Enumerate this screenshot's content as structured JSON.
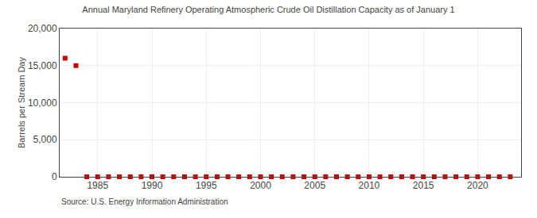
{
  "chart_data": {
    "type": "scatter",
    "title": "Annual Maryland Refinery Operating Atmospheric Crude Oil Distillation Capacity as of January 1",
    "ylabel": "Barrels per Stream Day",
    "annotations": [
      "Source: U.S. Energy Information Administration"
    ],
    "x": [
      1982,
      1983,
      1984,
      1985,
      1986,
      1987,
      1988,
      1989,
      1990,
      1991,
      1992,
      1993,
      1994,
      1995,
      1996,
      1997,
      1998,
      1999,
      2000,
      2001,
      2002,
      2003,
      2004,
      2005,
      2006,
      2007,
      2008,
      2009,
      2010,
      2011,
      2012,
      2013,
      2014,
      2015,
      2016,
      2017,
      2018,
      2019,
      2020,
      2021,
      2022,
      2023
    ],
    "values": [
      16000,
      15000,
      0,
      0,
      0,
      0,
      0,
      0,
      0,
      0,
      0,
      0,
      0,
      0,
      0,
      0,
      0,
      0,
      0,
      0,
      0,
      0,
      0,
      0,
      0,
      0,
      0,
      0,
      0,
      0,
      0,
      0,
      0,
      0,
      0,
      0,
      0,
      0,
      0,
      0,
      0,
      0
    ],
    "color": "#cc0000",
    "marker": "square",
    "xlim": [
      1981.5,
      2024
    ],
    "xticks": [
      1985,
      1990,
      1995,
      2000,
      2005,
      2010,
      2015,
      2020
    ],
    "ylim": [
      0,
      20000
    ],
    "yticks": [
      0,
      {
        "value": 5000,
        "label": "5,000"
      },
      {
        "value": 10000,
        "label": "10,000"
      },
      {
        "value": 15000,
        "label": "15,000"
      },
      {
        "value": 20000,
        "label": "20,000"
      }
    ],
    "grid": true
  }
}
